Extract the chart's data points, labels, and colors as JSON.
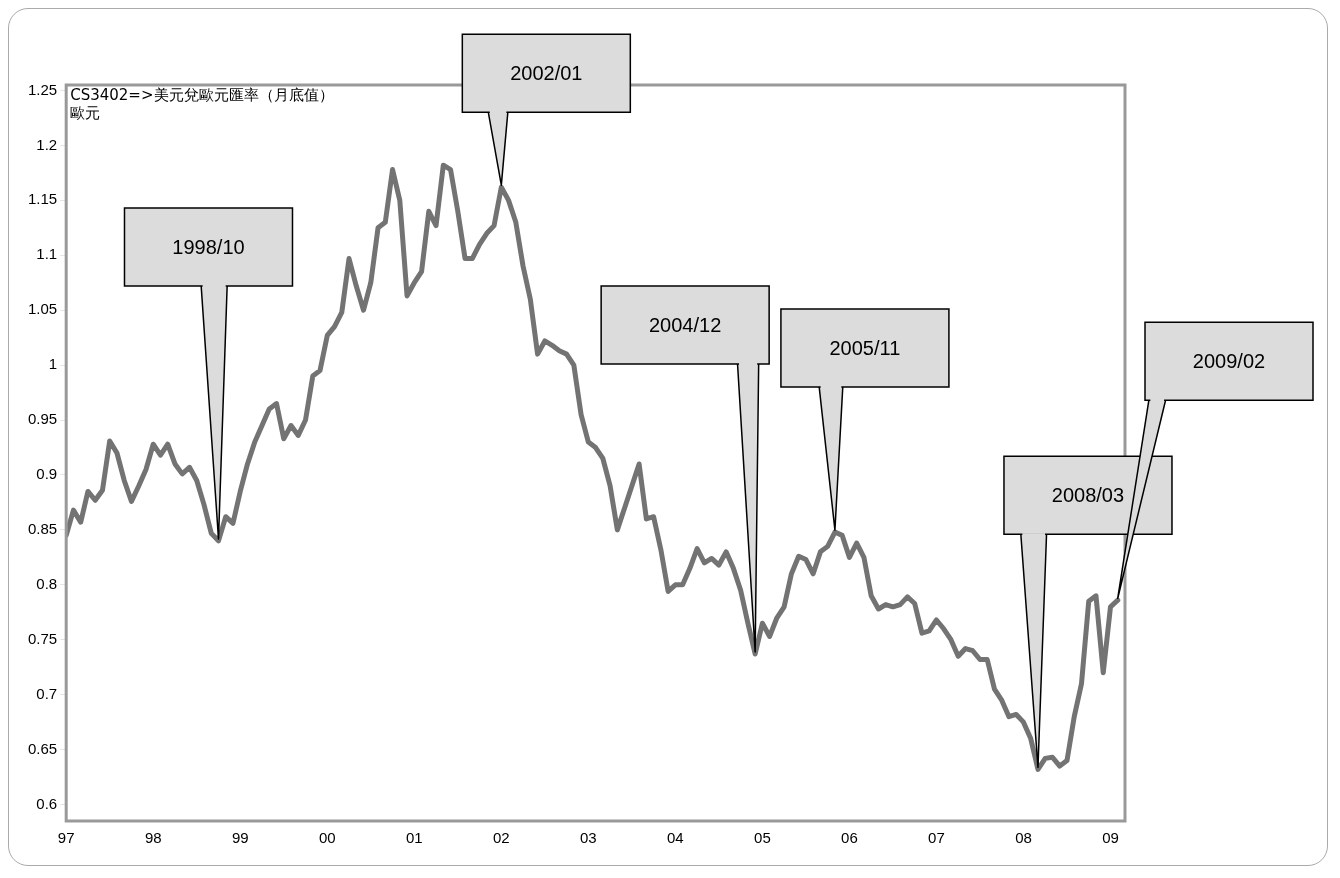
{
  "chart_data": {
    "type": "line",
    "title": "CS3402=>美元兌歐元匯率（月底值）",
    "ylabel": "歐元",
    "x": [
      "1997-01",
      "1997-02",
      "1997-03",
      "1997-04",
      "1997-05",
      "1997-06",
      "1997-07",
      "1997-08",
      "1997-09",
      "1997-10",
      "1997-11",
      "1997-12",
      "1998-01",
      "1998-02",
      "1998-03",
      "1998-04",
      "1998-05",
      "1998-06",
      "1998-07",
      "1998-08",
      "1998-09",
      "1998-10",
      "1998-11",
      "1998-12",
      "1999-01",
      "1999-02",
      "1999-03",
      "1999-04",
      "1999-05",
      "1999-06",
      "1999-07",
      "1999-08",
      "1999-09",
      "1999-10",
      "1999-11",
      "1999-12",
      "2000-01",
      "2000-02",
      "2000-03",
      "2000-04",
      "2000-05",
      "2000-06",
      "2000-07",
      "2000-08",
      "2000-09",
      "2000-10",
      "2000-11",
      "2000-12",
      "2001-01",
      "2001-02",
      "2001-03",
      "2001-04",
      "2001-05",
      "2001-06",
      "2001-07",
      "2001-08",
      "2001-09",
      "2001-10",
      "2001-11",
      "2001-12",
      "2002-01",
      "2002-02",
      "2002-03",
      "2002-04",
      "2002-05",
      "2002-06",
      "2002-07",
      "2002-08",
      "2002-09",
      "2002-10",
      "2002-11",
      "2002-12",
      "2003-01",
      "2003-02",
      "2003-03",
      "2003-04",
      "2003-05",
      "2003-06",
      "2003-07",
      "2003-08",
      "2003-09",
      "2003-10",
      "2003-11",
      "2003-12",
      "2004-01",
      "2004-02",
      "2004-03",
      "2004-04",
      "2004-05",
      "2004-06",
      "2004-07",
      "2004-08",
      "2004-09",
      "2004-10",
      "2004-11",
      "2004-12",
      "2005-01",
      "2005-02",
      "2005-03",
      "2005-04",
      "2005-05",
      "2005-06",
      "2005-07",
      "2005-08",
      "2005-09",
      "2005-10",
      "2005-11",
      "2005-12",
      "2006-01",
      "2006-02",
      "2006-03",
      "2006-04",
      "2006-05",
      "2006-06",
      "2006-07",
      "2006-08",
      "2006-09",
      "2006-10",
      "2006-11",
      "2006-12",
      "2007-01",
      "2007-02",
      "2007-03",
      "2007-04",
      "2007-05",
      "2007-06",
      "2007-07",
      "2007-08",
      "2007-09",
      "2007-10",
      "2007-11",
      "2007-12",
      "2008-01",
      "2008-02",
      "2008-03",
      "2008-04",
      "2008-05",
      "2008-06",
      "2008-07",
      "2008-08",
      "2008-09",
      "2008-10",
      "2008-11",
      "2008-12",
      "2009-01",
      "2009-02"
    ],
    "series": [
      {
        "color": "#737373",
        "values": [
          0.845,
          0.868,
          0.857,
          0.885,
          0.877,
          0.886,
          0.931,
          0.92,
          0.895,
          0.876,
          0.89,
          0.905,
          0.928,
          0.918,
          0.928,
          0.91,
          0.901,
          0.907,
          0.895,
          0.873,
          0.847,
          0.84,
          0.862,
          0.856,
          0.885,
          0.91,
          0.93,
          0.945,
          0.96,
          0.965,
          0.933,
          0.945,
          0.936,
          0.95,
          0.99,
          0.995,
          1.027,
          1.035,
          1.048,
          1.097,
          1.072,
          1.05,
          1.075,
          1.125,
          1.13,
          1.178,
          1.15,
          1.063,
          1.075,
          1.085,
          1.14,
          1.127,
          1.182,
          1.178,
          1.14,
          1.097,
          1.097,
          1.11,
          1.12,
          1.127,
          1.162,
          1.15,
          1.13,
          1.09,
          1.06,
          1.01,
          1.022,
          1.018,
          1.013,
          1.01,
          1.0,
          0.955,
          0.93,
          0.925,
          0.915,
          0.89,
          0.85,
          0.87,
          0.89,
          0.91,
          0.86,
          0.862,
          0.832,
          0.794,
          0.8,
          0.8,
          0.815,
          0.833,
          0.82,
          0.824,
          0.818,
          0.83,
          0.815,
          0.795,
          0.765,
          0.737,
          0.765,
          0.753,
          0.77,
          0.78,
          0.81,
          0.826,
          0.823,
          0.81,
          0.83,
          0.835,
          0.848,
          0.845,
          0.825,
          0.838,
          0.825,
          0.79,
          0.778,
          0.782,
          0.78,
          0.782,
          0.789,
          0.783,
          0.756,
          0.758,
          0.768,
          0.76,
          0.75,
          0.735,
          0.742,
          0.74,
          0.732,
          0.732,
          0.705,
          0.695,
          0.68,
          0.682,
          0.675,
          0.66,
          0.632,
          0.642,
          0.643,
          0.635,
          0.64,
          0.68,
          0.71,
          0.785,
          0.79,
          0.72,
          0.78,
          0.786
        ]
      }
    ],
    "xlim": [
      "1997-01",
      "2009-03"
    ],
    "xticks": [
      {
        "value": "1997-01",
        "label": "97"
      },
      {
        "value": "1998-01",
        "label": "98"
      },
      {
        "value": "1999-01",
        "label": "99"
      },
      {
        "value": "2000-01",
        "label": "00"
      },
      {
        "value": "2001-01",
        "label": "01"
      },
      {
        "value": "2002-01",
        "label": "02"
      },
      {
        "value": "2003-01",
        "label": "03"
      },
      {
        "value": "2004-01",
        "label": "04"
      },
      {
        "value": "2005-01",
        "label": "05"
      },
      {
        "value": "2006-01",
        "label": "06"
      },
      {
        "value": "2007-01",
        "label": "07"
      },
      {
        "value": "2008-01",
        "label": "08"
      },
      {
        "value": "2009-01",
        "label": "09"
      }
    ],
    "ylim": [
      0.585,
      1.255
    ],
    "yticks": [
      0.6,
      0.65,
      0.7,
      0.75,
      0.8,
      0.85,
      0.9,
      0.95,
      1,
      1.05,
      1.1,
      1.15,
      1.2,
      1.25
    ],
    "grid": false,
    "legend": false,
    "marker": "none",
    "line_style": "solid",
    "annotations": [
      {
        "text": "1998/10",
        "x": "1998-10",
        "y": 0.84
      },
      {
        "text": "2002/01",
        "x": "2002-01",
        "y": 1.162
      },
      {
        "text": "2004/12",
        "x": "2004-12",
        "y": 0.737
      },
      {
        "text": "2005/11",
        "x": "2005-11",
        "y": 0.848
      },
      {
        "text": "2008/03",
        "x": "2008-03",
        "y": 0.632
      },
      {
        "text": "2009/02",
        "x": "2009-02",
        "y": 0.786
      }
    ]
  }
}
